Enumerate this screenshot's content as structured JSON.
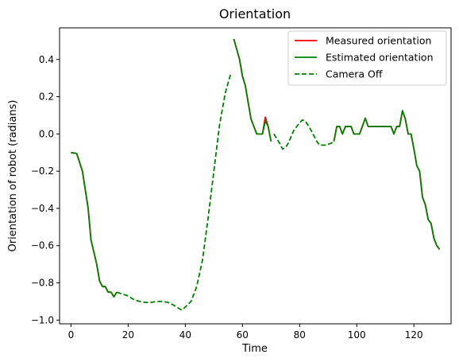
{
  "chart_data": {
    "type": "line",
    "title": "Orientation",
    "xlabel": "Time",
    "ylabel": "Orientation of robot (radians)",
    "xlim": [
      -4,
      133
    ],
    "ylim": [
      -1.02,
      0.57
    ],
    "xticks": [
      0,
      20,
      40,
      60,
      80,
      100,
      120
    ],
    "yticks": [
      -1.0,
      -0.8,
      -0.6,
      -0.4,
      -0.2,
      0.0,
      0.2,
      0.4
    ],
    "grid": false,
    "legend_position": "top-right",
    "legend": [
      {
        "label": "Measured orientation",
        "color": "#ff0000",
        "style": "solid"
      },
      {
        "label": "Estimated orientation",
        "color": "#008000",
        "style": "solid"
      },
      {
        "label": "Camera Off",
        "color": "#008000",
        "style": "dashed"
      }
    ],
    "series": [
      {
        "name": "Measured orientation",
        "color": "#ff0000",
        "style": "solid",
        "segments": [
          [
            [
              0,
              -0.1
            ],
            [
              2,
              -0.105
            ],
            [
              4,
              -0.2
            ],
            [
              6,
              -0.4
            ],
            [
              7,
              -0.57
            ],
            [
              9,
              -0.7
            ],
            [
              10,
              -0.79
            ],
            [
              11,
              -0.82
            ],
            [
              12,
              -0.82
            ],
            [
              13,
              -0.85
            ],
            [
              14,
              -0.85
            ],
            [
              15,
              -0.875
            ],
            [
              16,
              -0.85
            ]
          ],
          [
            [
              57,
              0.51
            ],
            [
              59,
              0.4
            ],
            [
              60,
              0.31
            ],
            [
              61,
              0.26
            ],
            [
              62,
              0.17
            ],
            [
              63,
              0.08
            ],
            [
              65,
              0.0
            ],
            [
              67,
              0.0
            ],
            [
              68,
              0.09
            ],
            [
              69,
              0.04
            ],
            [
              70,
              -0.04
            ]
          ],
          [
            [
              92,
              -0.04
            ],
            [
              93,
              0.04
            ],
            [
              94,
              0.04
            ],
            [
              95,
              0.0
            ],
            [
              96,
              0.04
            ],
            [
              98,
              0.04
            ],
            [
              99,
              0.0
            ],
            [
              101,
              0.0
            ],
            [
              103,
              0.085
            ],
            [
              104,
              0.04
            ],
            [
              107,
              0.04
            ],
            [
              110,
              0.04
            ],
            [
              112,
              0.04
            ],
            [
              113,
              0.0
            ],
            [
              114,
              0.04
            ],
            [
              115,
              0.04
            ],
            [
              116,
              0.125
            ],
            [
              117,
              0.08
            ],
            [
              118,
              0.0
            ],
            [
              119,
              0.0
            ],
            [
              120,
              -0.08
            ],
            [
              121,
              -0.17
            ],
            [
              122,
              -0.2
            ],
            [
              123,
              -0.34
            ],
            [
              124,
              -0.38
            ],
            [
              125,
              -0.46
            ],
            [
              126,
              -0.48
            ],
            [
              127,
              -0.56
            ],
            [
              128,
              -0.6
            ],
            [
              129,
              -0.62
            ]
          ]
        ]
      },
      {
        "name": "Estimated orientation",
        "color": "#008000",
        "style": "solid",
        "segments": [
          [
            [
              0,
              -0.1
            ],
            [
              2,
              -0.105
            ],
            [
              4,
              -0.2
            ],
            [
              6,
              -0.4
            ],
            [
              7,
              -0.57
            ],
            [
              9,
              -0.7
            ],
            [
              10,
              -0.79
            ],
            [
              11,
              -0.82
            ],
            [
              12,
              -0.82
            ],
            [
              13,
              -0.85
            ],
            [
              14,
              -0.85
            ],
            [
              15,
              -0.875
            ],
            [
              16,
              -0.85
            ]
          ],
          [
            [
              57,
              0.51
            ],
            [
              59,
              0.4
            ],
            [
              60,
              0.31
            ],
            [
              61,
              0.26
            ],
            [
              62,
              0.17
            ],
            [
              63,
              0.08
            ],
            [
              65,
              0.0
            ],
            [
              67,
              0.0
            ],
            [
              68,
              0.07
            ],
            [
              69,
              0.04
            ],
            [
              70,
              -0.04
            ]
          ],
          [
            [
              92,
              -0.04
            ],
            [
              93,
              0.04
            ],
            [
              94,
              0.04
            ],
            [
              95,
              0.0
            ],
            [
              96,
              0.04
            ],
            [
              98,
              0.04
            ],
            [
              99,
              0.0
            ],
            [
              101,
              0.0
            ],
            [
              103,
              0.085
            ],
            [
              104,
              0.04
            ],
            [
              107,
              0.04
            ],
            [
              110,
              0.04
            ],
            [
              112,
              0.04
            ],
            [
              113,
              0.0
            ],
            [
              114,
              0.04
            ],
            [
              115,
              0.04
            ],
            [
              116,
              0.125
            ],
            [
              117,
              0.08
            ],
            [
              118,
              0.0
            ],
            [
              119,
              0.0
            ],
            [
              120,
              -0.08
            ],
            [
              121,
              -0.17
            ],
            [
              122,
              -0.2
            ],
            [
              123,
              -0.34
            ],
            [
              124,
              -0.38
            ],
            [
              125,
              -0.46
            ],
            [
              126,
              -0.48
            ],
            [
              127,
              -0.56
            ],
            [
              128,
              -0.6
            ],
            [
              129,
              -0.62
            ]
          ]
        ]
      },
      {
        "name": "Camera Off",
        "color": "#008000",
        "style": "dashed",
        "segments": [
          [
            [
              16,
              -0.85
            ],
            [
              18,
              -0.86
            ],
            [
              20,
              -0.87
            ],
            [
              22,
              -0.89
            ],
            [
              24,
              -0.9
            ],
            [
              26,
              -0.905
            ],
            [
              28,
              -0.905
            ],
            [
              30,
              -0.9
            ],
            [
              32,
              -0.9
            ],
            [
              34,
              -0.905
            ],
            [
              36,
              -0.92
            ],
            [
              38,
              -0.94
            ],
            [
              39,
              -0.945
            ],
            [
              40,
              -0.93
            ],
            [
              42,
              -0.9
            ],
            [
              44,
              -0.82
            ],
            [
              46,
              -0.68
            ],
            [
              48,
              -0.45
            ],
            [
              50,
              -0.2
            ],
            [
              52,
              0.05
            ],
            [
              54,
              0.22
            ],
            [
              56,
              0.33
            ]
          ],
          [
            [
              71,
              0.0
            ],
            [
              73,
              -0.05
            ],
            [
              74,
              -0.08
            ],
            [
              75,
              -0.075
            ],
            [
              76,
              -0.05
            ],
            [
              78,
              0.02
            ],
            [
              80,
              0.06
            ],
            [
              81,
              0.075
            ],
            [
              82,
              0.07
            ],
            [
              84,
              0.02
            ],
            [
              86,
              -0.04
            ],
            [
              87,
              -0.06
            ],
            [
              89,
              -0.06
            ],
            [
              91,
              -0.05
            ],
            [
              92,
              -0.04
            ]
          ]
        ]
      }
    ]
  }
}
